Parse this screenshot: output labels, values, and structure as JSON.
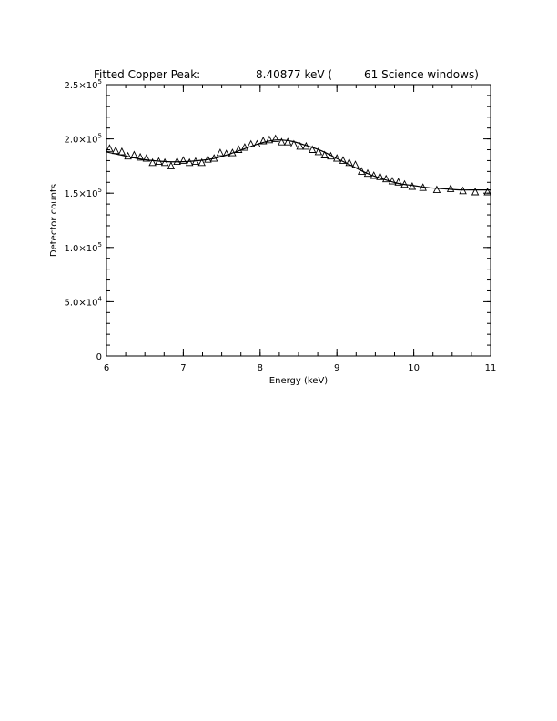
{
  "chart_data": {
    "type": "scatter",
    "title_parts": [
      "Fitted Copper Peak:",
      "8.40877 keV (",
      "61 Science windows)"
    ],
    "xlabel": "Energy (keV)",
    "ylabel": "Detector counts",
    "xlim": [
      6,
      11
    ],
    "ylim": [
      0,
      250000
    ],
    "xticks": [
      {
        "value": 6,
        "label": "6"
      },
      {
        "value": 7,
        "label": "7"
      },
      {
        "value": 8,
        "label": "8"
      },
      {
        "value": 9,
        "label": "9"
      },
      {
        "value": 10,
        "label": "10"
      },
      {
        "value": 11,
        "label": "11"
      }
    ],
    "yticks": [
      {
        "value": 0,
        "mantissa": "0",
        "exponent": ""
      },
      {
        "value": 50000,
        "mantissa": "5.0×10",
        "exponent": "4"
      },
      {
        "value": 100000,
        "mantissa": "1.0×10",
        "exponent": "5"
      },
      {
        "value": 150000,
        "mantissa": "1.5×10",
        "exponent": "5"
      },
      {
        "value": 200000,
        "mantissa": "2.0×10",
        "exponent": "5"
      },
      {
        "value": 250000,
        "mantissa": "2.5×10",
        "exponent": "5"
      }
    ],
    "x_minor_step": 0.25,
    "y_minor_step": 10000,
    "series": [
      {
        "marker": "triangle",
        "x": [
          6.04,
          6.12,
          6.2,
          6.28,
          6.36,
          6.44,
          6.52,
          6.6,
          6.68,
          6.76,
          6.84,
          6.92,
          7.0,
          7.08,
          7.16,
          7.24,
          7.32,
          7.4,
          7.48,
          7.56,
          7.64,
          7.72,
          7.8,
          7.88,
          7.96,
          8.04,
          8.12,
          8.2,
          8.28,
          8.36,
          8.44,
          8.52,
          8.6,
          8.68,
          8.76,
          8.84,
          8.92,
          9.0,
          9.08,
          9.16,
          9.24,
          9.32,
          9.4,
          9.48,
          9.56,
          9.64,
          9.72,
          9.8,
          9.88,
          9.98,
          10.12,
          10.3,
          10.48,
          10.64,
          10.8,
          10.96
        ],
        "y": [
          191000,
          189000,
          188000,
          184000,
          185000,
          183000,
          182000,
          178000,
          179000,
          178000,
          175000,
          179000,
          180000,
          178000,
          179000,
          178000,
          181000,
          182000,
          187000,
          186000,
          187000,
          190000,
          192000,
          195000,
          195000,
          198000,
          199000,
          200000,
          197000,
          197000,
          195000,
          193000,
          193000,
          190000,
          188000,
          185000,
          184000,
          182000,
          180000,
          178000,
          176000,
          170000,
          168000,
          166000,
          165000,
          163000,
          161000,
          160000,
          158000,
          156000,
          155000,
          153000,
          154000,
          152000,
          151000,
          151000
        ]
      }
    ],
    "fit": {
      "x": [
        6.0,
        6.2,
        6.4,
        6.6,
        6.8,
        7.0,
        7.2,
        7.4,
        7.6,
        7.8,
        8.0,
        8.2,
        8.4,
        8.6,
        8.8,
        9.0,
        9.2,
        9.4,
        9.6,
        9.8,
        10.0,
        10.2,
        10.4,
        10.6,
        10.8,
        11.0
      ],
      "y": [
        188000,
        185000,
        182000,
        180000,
        179000,
        179000,
        180000,
        182000,
        186000,
        191000,
        196000,
        199000,
        198000,
        194000,
        189000,
        182000,
        175000,
        168000,
        163000,
        159000,
        157000,
        155000,
        154000,
        153000,
        153000,
        153000
      ]
    }
  }
}
